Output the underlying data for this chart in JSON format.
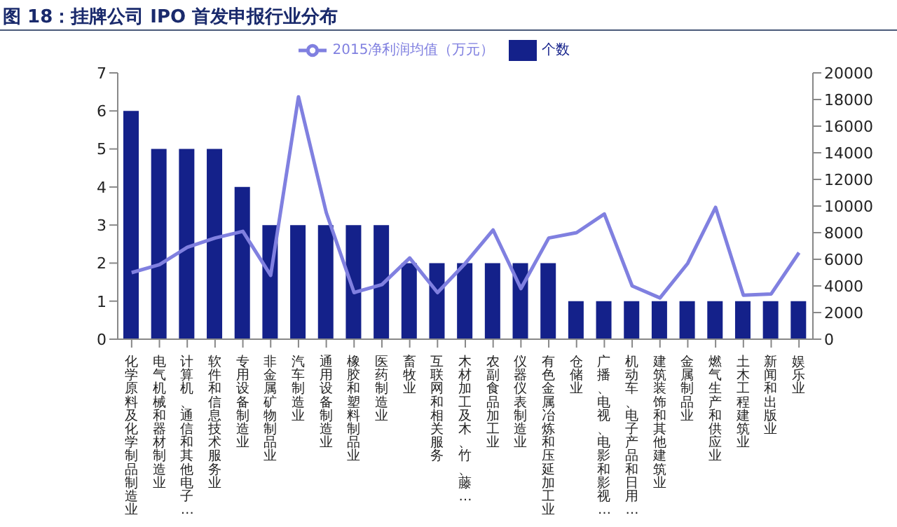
{
  "chart_data": {
    "type": "bar",
    "title": "图 18：挂牌公司 IPO 首发申报行业分布",
    "categories": [
      "化学原料及化学制品制造业",
      "电气机械和器材制造业",
      "计算机、通信和其他电子…",
      "软件和信息技术服务业",
      "专用设备制造业",
      "非金属矿物制品业",
      "汽车制造业",
      "通用设备制造业",
      "橡胶和塑料制品业",
      "医药制造业",
      "畜牧业",
      "互联网和相关服务",
      "木材加工及木、竹、藤…",
      "农副食品加工业",
      "仪器仪表制造业",
      "有色金属冶炼和压延加工业",
      "仓储业",
      "广播、电视、电影和影视…",
      "机动车、电子产品和日用…",
      "建筑装饰和其他建筑业",
      "金属制品业",
      "燃气生产和供应业",
      "土木工程建筑业",
      "新闻和出版业",
      "娱乐业"
    ],
    "series": [
      {
        "name": "个数",
        "color": "#14218a",
        "values": [
          6,
          5,
          5,
          5,
          4,
          3,
          3,
          3,
          3,
          3,
          2,
          2,
          2,
          2,
          2,
          2,
          1,
          1,
          1,
          1,
          1,
          1,
          1,
          1,
          1
        ]
      },
      {
        "name": "2015净利润均值（万元）",
        "type": "line",
        "axis": "y2",
        "color": "#8080e0",
        "values": [
          5000,
          5600,
          6900,
          7600,
          8100,
          4800,
          18200,
          9500,
          3500,
          4100,
          6100,
          3500,
          5700,
          8200,
          3800,
          7600,
          8000,
          9400,
          4000,
          3100,
          5700,
          9900,
          3300,
          3400,
          6500
        ]
      }
    ],
    "ylim": [
      0,
      7
    ],
    "yticks": [
      0,
      1,
      2,
      3,
      4,
      5,
      6,
      7
    ],
    "y2lim": [
      0,
      20000
    ],
    "y2ticks": [
      0,
      2000,
      4000,
      6000,
      8000,
      10000,
      12000,
      14000,
      16000,
      18000,
      20000
    ],
    "grid": false,
    "legend": "top",
    "marker": "none",
    "line_style": "solid"
  }
}
